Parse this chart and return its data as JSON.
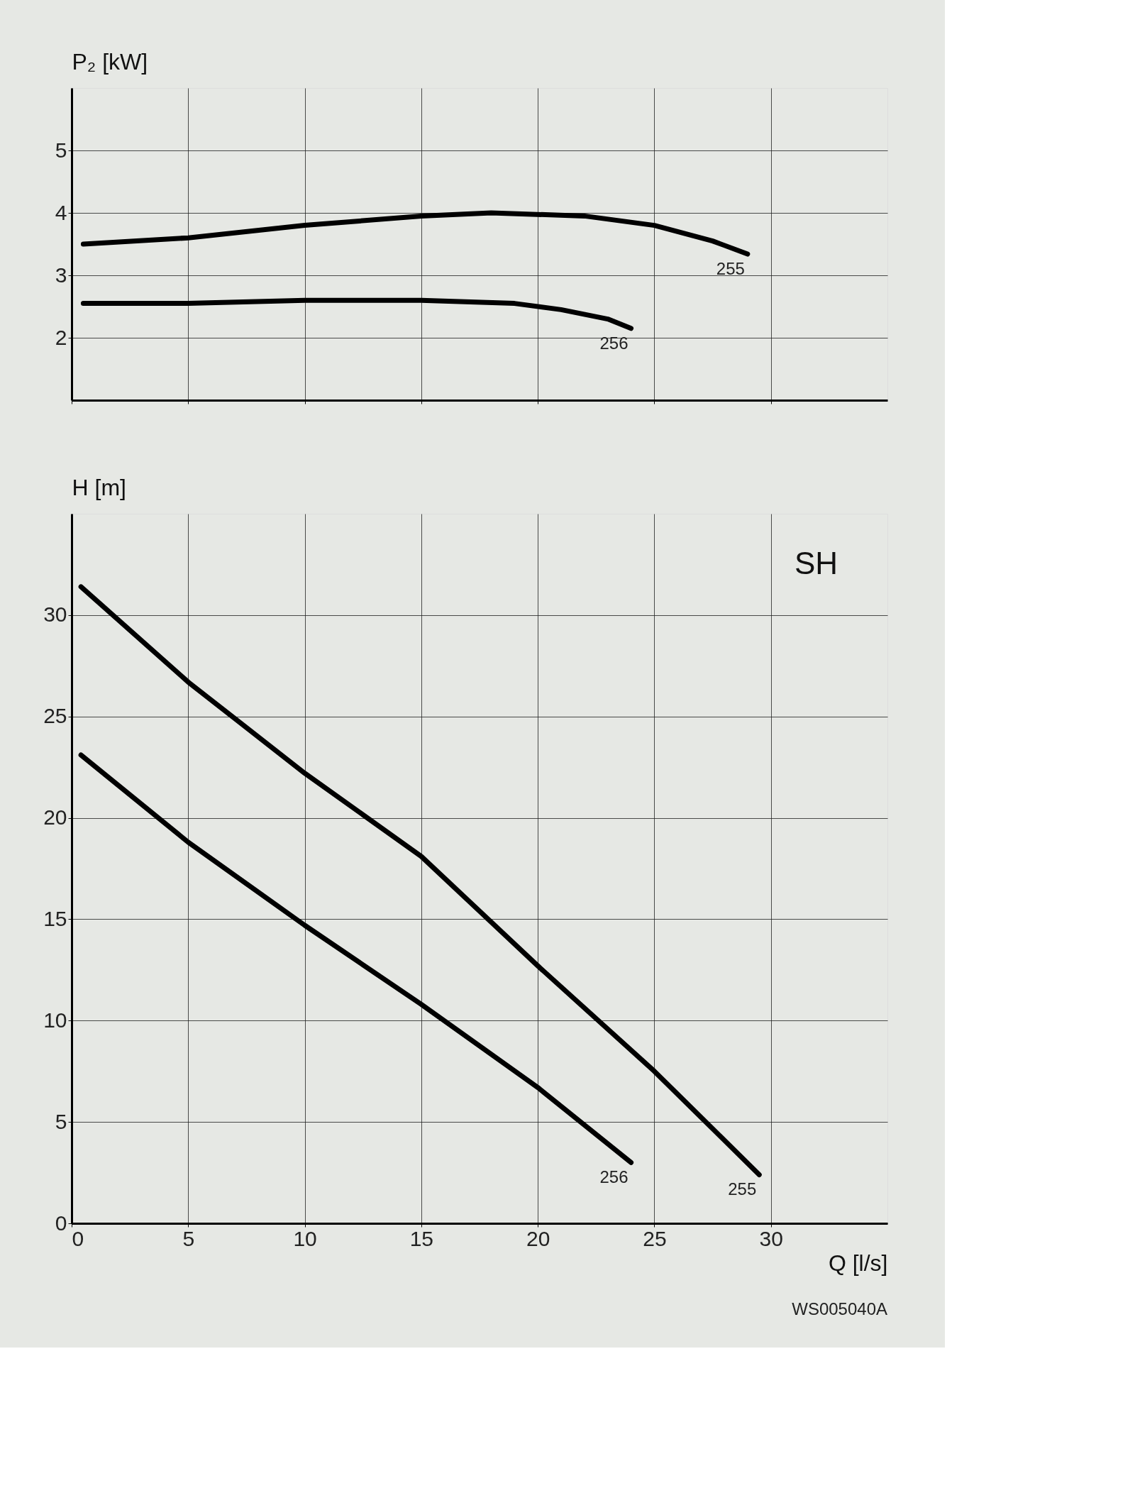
{
  "chart_data": [
    {
      "type": "line",
      "ylabel": "P₂ [kW]",
      "xlim": [
        0,
        35
      ],
      "xticks": [
        0,
        5,
        10,
        15,
        20,
        25,
        30
      ],
      "ylim": [
        1,
        6
      ],
      "yticks": [
        2,
        3,
        4,
        5
      ],
      "grid": true,
      "legend": false,
      "tick_labels": "y",
      "marker": "none",
      "line_style": "solid",
      "series": [
        {
          "name": "255",
          "color": "#000000",
          "x": [
            0.5,
            5,
            10,
            15,
            18,
            22,
            25,
            27.5,
            29
          ],
          "values": [
            3.5,
            3.6,
            3.8,
            3.95,
            4.0,
            3.95,
            3.8,
            3.55,
            3.34
          ]
        },
        {
          "name": "256",
          "color": "#000000",
          "x": [
            0.5,
            5,
            10,
            15,
            19,
            21,
            23,
            24
          ],
          "values": [
            2.55,
            2.55,
            2.6,
            2.6,
            2.55,
            2.45,
            2.3,
            2.15
          ]
        }
      ]
    },
    {
      "type": "line",
      "xlabel": "Q [l/s]",
      "ylabel": "H [m]",
      "xlim": [
        0,
        35
      ],
      "xticks": [
        0,
        5,
        10,
        15,
        20,
        25,
        30
      ],
      "ylim": [
        0,
        35
      ],
      "yticks": [
        0,
        5,
        10,
        15,
        20,
        25,
        30
      ],
      "grid": true,
      "legend": false,
      "marker": "none",
      "line_style": "solid",
      "annotations": [
        "SH",
        "WS005040A"
      ],
      "series": [
        {
          "name": "255",
          "color": "#000000",
          "x": [
            0.4,
            5,
            10,
            15,
            20,
            25,
            29.5
          ],
          "values": [
            31.4,
            26.7,
            22.2,
            18.1,
            12.7,
            7.5,
            2.4
          ]
        },
        {
          "name": "256",
          "color": "#000000",
          "x": [
            0.4,
            5,
            10,
            15,
            20,
            24
          ],
          "values": [
            23.1,
            18.8,
            14.7,
            10.8,
            6.7,
            3.0
          ]
        }
      ]
    }
  ]
}
